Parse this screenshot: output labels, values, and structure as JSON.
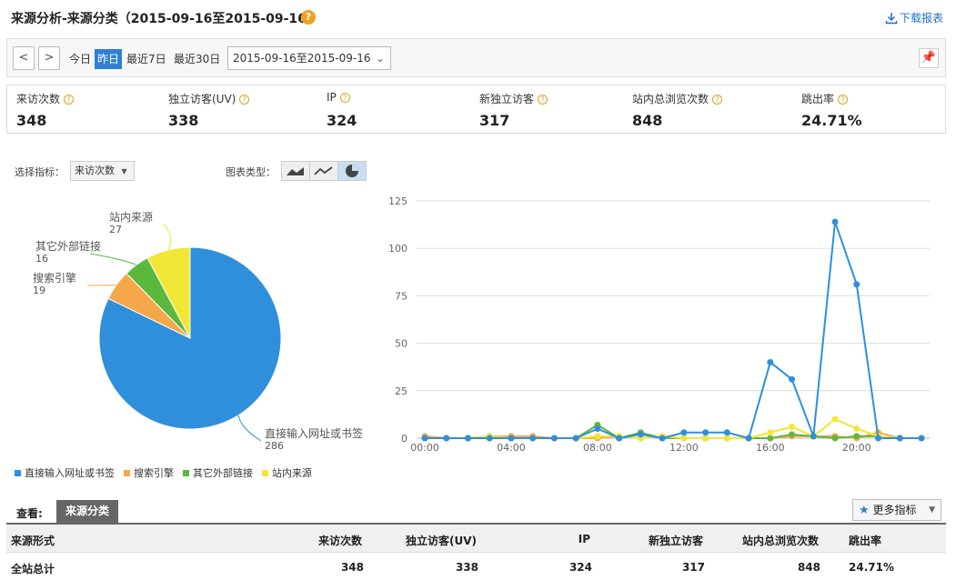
{
  "header": {
    "title": "来源分析-来源分类（2015-09-16至2015-09-16）",
    "help": "?",
    "download_label": "下载报表"
  },
  "toolbar": {
    "prev": "<",
    "next": ">",
    "ranges": [
      "今日",
      "昨日",
      "最近7日",
      "最近30日"
    ],
    "active_range": "昨日",
    "date_range": "2015-09-16至2015-09-16"
  },
  "metrics": [
    {
      "label": "来访次数",
      "value": "348"
    },
    {
      "label": "独立访客(UV)",
      "value": "338"
    },
    {
      "label": "IP",
      "value": "324"
    },
    {
      "label": "新独立访客",
      "value": "317"
    },
    {
      "label": "站内总浏览次数",
      "value": "848"
    },
    {
      "label": "跳出率",
      "value": "24.71%"
    }
  ],
  "controls": {
    "select_label": "选择指标：",
    "select_value": "来访次数",
    "chart_type_label": "图表类型：",
    "chart_types": [
      "area-chart-icon",
      "line-chart-icon",
      "pie-chart-icon"
    ],
    "active_chart_type": "pie-chart-icon"
  },
  "colors": {
    "direct": "#2f8fdb",
    "search": "#f5a849",
    "external": "#5cb83c",
    "internal": "#f2e737",
    "accent": "#2f7fd3"
  },
  "chart_data": [
    {
      "type": "pie",
      "slices": [
        {
          "name": "直接输入网址或书签",
          "value": 286
        },
        {
          "name": "搜索引擎",
          "value": 19
        },
        {
          "name": "其它外部链接",
          "value": 16
        },
        {
          "name": "站内来源",
          "value": 27
        }
      ]
    },
    {
      "type": "line",
      "x": [
        "00:00",
        "01:00",
        "02:00",
        "03:00",
        "04:00",
        "05:00",
        "06:00",
        "07:00",
        "08:00",
        "09:00",
        "10:00",
        "11:00",
        "12:00",
        "13:00",
        "14:00",
        "15:00",
        "16:00",
        "17:00",
        "18:00",
        "19:00",
        "20:00",
        "21:00",
        "22:00",
        "23:00"
      ],
      "x_ticks": [
        "00:00",
        "04:00",
        "08:00",
        "12:00",
        "16:00",
        "20:00"
      ],
      "ylim": [
        0,
        125
      ],
      "y_ticks": [
        0,
        25,
        50,
        75,
        100,
        125
      ],
      "grid": true,
      "series": [
        {
          "name": "直接输入网址或书签",
          "color": "#2f8fdb",
          "values": [
            0,
            0,
            0,
            0,
            0,
            0,
            0,
            0,
            5,
            0,
            2,
            0,
            3,
            3,
            3,
            0,
            40,
            31,
            1,
            114,
            81,
            0,
            0,
            0
          ]
        },
        {
          "name": "搜索引擎",
          "color": "#f5a849",
          "values": [
            1,
            0,
            0,
            1,
            1,
            1,
            0,
            0,
            0,
            1,
            0,
            1,
            0,
            0,
            0,
            0,
            0,
            1,
            1,
            1,
            0,
            3,
            0,
            0
          ]
        },
        {
          "name": "其它外部链接",
          "color": "#5cb83c",
          "values": [
            0,
            0,
            0,
            0,
            0,
            0,
            0,
            0,
            7,
            0,
            3,
            0,
            0,
            0,
            0,
            0,
            0,
            2,
            1,
            0,
            1,
            1,
            0,
            0
          ]
        },
        {
          "name": "站内来源",
          "color": "#f2e737",
          "values": [
            0,
            0,
            0,
            1,
            0,
            0,
            0,
            0,
            1,
            1,
            0,
            1,
            0,
            0,
            0,
            0,
            3,
            6,
            1,
            10,
            5,
            1,
            0,
            0
          ]
        }
      ]
    }
  ],
  "view": {
    "label": "查看:",
    "tab": "来源分类",
    "more_metrics": "更多指标"
  },
  "table": {
    "columns": [
      "来源形式",
      "来访次数",
      "独立访客(UV)",
      "IP",
      "新独立访客",
      "站内总浏览次数",
      "跳出率"
    ],
    "rows": [
      [
        "全站总计",
        "348",
        "338",
        "324",
        "317",
        "848",
        "24.71%"
      ]
    ]
  }
}
